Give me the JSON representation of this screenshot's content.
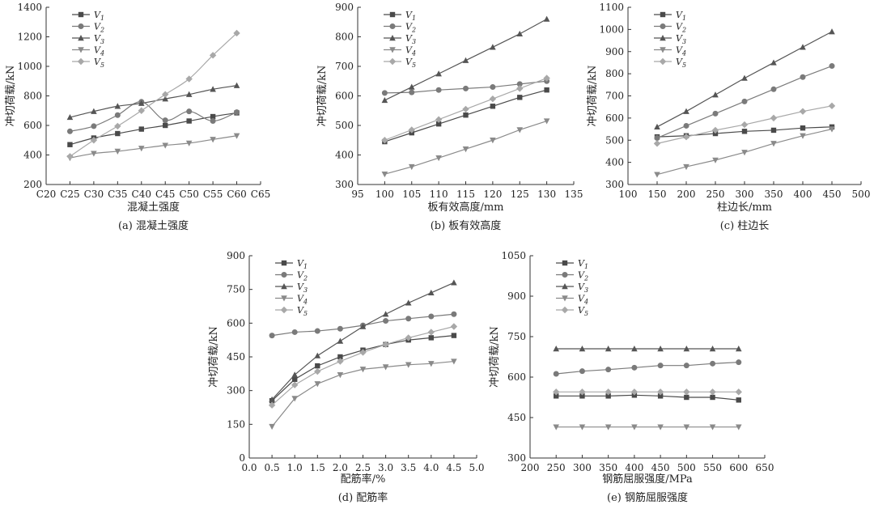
{
  "series_colors": [
    "#4a4a4a",
    "#7a7a7a",
    "#555555",
    "#8a8a8a",
    "#a8a8a8"
  ],
  "legend": [
    {
      "letter": "V",
      "sub": "1",
      "marker": "square"
    },
    {
      "letter": "V",
      "sub": "2",
      "marker": "circle"
    },
    {
      "letter": "V",
      "sub": "3",
      "marker": "triangle-up"
    },
    {
      "letter": "V",
      "sub": "4",
      "marker": "triangle-down"
    },
    {
      "letter": "V",
      "sub": "5",
      "marker": "diamond"
    }
  ],
  "chart_data": [
    {
      "id": "a",
      "type": "line",
      "title": "(a) 混凝土强度",
      "xlabel": "混凝土强度",
      "ylabel": "冲切荷载/kN",
      "x_categorical": true,
      "xticks": [
        "C20",
        "C25",
        "C30",
        "C35",
        "C40",
        "C45",
        "C50",
        "C55",
        "C60",
        "C65"
      ],
      "xlim": [
        0,
        9
      ],
      "ylim": [
        200,
        1400
      ],
      "yticks": [
        200,
        400,
        600,
        800,
        1000,
        1200,
        1400
      ],
      "smooth": true,
      "x": [
        1,
        2,
        3,
        4,
        5,
        6,
        7,
        8
      ],
      "series": [
        {
          "name": "V1",
          "values": [
            470,
            515,
            545,
            575,
            600,
            630,
            660,
            685
          ]
        },
        {
          "name": "V2",
          "values": [
            560,
            595,
            670,
            760,
            635,
            695,
            630,
            690
          ]
        },
        {
          "name": "V3",
          "values": [
            655,
            695,
            730,
            750,
            780,
            810,
            845,
            870
          ]
        },
        {
          "name": "V4",
          "values": [
            380,
            410,
            425,
            445,
            465,
            480,
            505,
            530
          ]
        },
        {
          "name": "V5",
          "values": [
            390,
            500,
            595,
            700,
            810,
            915,
            1075,
            1225
          ]
        }
      ]
    },
    {
      "id": "b",
      "type": "line",
      "title": "(b) 板有效高度",
      "xlabel": "板有效高度/mm",
      "ylabel": "冲切荷载/kN",
      "xticks": [
        95,
        100,
        105,
        110,
        115,
        120,
        125,
        130,
        135
      ],
      "xlim": [
        95,
        135
      ],
      "ylim": [
        300,
        900
      ],
      "yticks": [
        300,
        400,
        500,
        600,
        700,
        800,
        900
      ],
      "x": [
        100,
        105,
        110,
        115,
        120,
        125,
        130
      ],
      "series": [
        {
          "name": "V1",
          "values": [
            445,
            475,
            505,
            535,
            565,
            595,
            620
          ]
        },
        {
          "name": "V2",
          "values": [
            610,
            612,
            620,
            625,
            630,
            640,
            650
          ]
        },
        {
          "name": "V3",
          "values": [
            585,
            630,
            675,
            720,
            765,
            810,
            860
          ]
        },
        {
          "name": "V4",
          "values": [
            335,
            360,
            390,
            420,
            450,
            485,
            515
          ]
        },
        {
          "name": "V5",
          "values": [
            450,
            485,
            520,
            555,
            590,
            625,
            660
          ]
        }
      ]
    },
    {
      "id": "c",
      "type": "line",
      "title": "(c) 柱边长",
      "xlabel": "柱边长/mm",
      "ylabel": "冲切荷载/kN",
      "xticks": [
        100,
        150,
        200,
        250,
        300,
        350,
        400,
        450,
        500
      ],
      "xlim": [
        100,
        500
      ],
      "ylim": [
        300,
        1100
      ],
      "yticks": [
        300,
        400,
        500,
        600,
        700,
        800,
        900,
        1000,
        1100
      ],
      "x": [
        150,
        200,
        250,
        300,
        350,
        400,
        450
      ],
      "series": [
        {
          "name": "V1",
          "values": [
            515,
            520,
            530,
            540,
            545,
            555,
            560
          ]
        },
        {
          "name": "V2",
          "values": [
            510,
            565,
            620,
            675,
            730,
            785,
            835
          ]
        },
        {
          "name": "V3",
          "values": [
            560,
            630,
            705,
            780,
            850,
            920,
            990
          ]
        },
        {
          "name": "V4",
          "values": [
            345,
            380,
            410,
            445,
            485,
            520,
            550
          ]
        },
        {
          "name": "V5",
          "values": [
            485,
            515,
            545,
            570,
            600,
            630,
            655
          ]
        }
      ]
    },
    {
      "id": "d",
      "type": "line",
      "title": "(d) 配筋率",
      "xlabel": "配筋率/%",
      "ylabel": "冲切荷载/kN",
      "xticks": [
        "0.0",
        "0.5",
        "1.0",
        "1.5",
        "2.0",
        "2.5",
        "3.0",
        "3.5",
        "4.0",
        "4.5",
        "5.0"
      ],
      "xlim": [
        0,
        5
      ],
      "ylim": [
        0,
        900
      ],
      "yticks": [
        0,
        150,
        300,
        450,
        600,
        750,
        900
      ],
      "x": [
        0.5,
        1.0,
        1.5,
        2.0,
        2.5,
        3.0,
        3.5,
        4.0,
        4.5
      ],
      "series": [
        {
          "name": "V1",
          "values": [
            255,
            350,
            410,
            450,
            480,
            505,
            525,
            535,
            545
          ]
        },
        {
          "name": "V2",
          "values": [
            545,
            560,
            565,
            575,
            590,
            610,
            620,
            630,
            640
          ]
        },
        {
          "name": "V3",
          "values": [
            260,
            370,
            455,
            520,
            585,
            640,
            690,
            735,
            780
          ]
        },
        {
          "name": "V4",
          "values": [
            140,
            265,
            330,
            370,
            395,
            405,
            415,
            420,
            430
          ]
        },
        {
          "name": "V5",
          "values": [
            235,
            325,
            385,
            430,
            470,
            505,
            535,
            560,
            585
          ]
        }
      ]
    },
    {
      "id": "e",
      "type": "line",
      "title": "(e) 钢筋屈服强度",
      "xlabel": "钢筋屈服强度/MPa",
      "ylabel": "冲切荷载/kN",
      "xticks": [
        200,
        250,
        300,
        350,
        400,
        450,
        500,
        550,
        600,
        650
      ],
      "xlim": [
        200,
        650
      ],
      "ylim": [
        300,
        1050
      ],
      "yticks": [
        300,
        450,
        600,
        750,
        900,
        1050
      ],
      "x": [
        250,
        300,
        350,
        400,
        450,
        500,
        550,
        600
      ],
      "series": [
        {
          "name": "V1",
          "values": [
            530,
            530,
            530,
            533,
            530,
            525,
            525,
            515
          ]
        },
        {
          "name": "V2",
          "values": [
            612,
            622,
            628,
            635,
            643,
            643,
            650,
            655
          ]
        },
        {
          "name": "V3",
          "values": [
            705,
            705,
            705,
            705,
            705,
            705,
            705,
            705
          ]
        },
        {
          "name": "V4",
          "values": [
            415,
            415,
            415,
            415,
            415,
            415,
            415,
            415
          ]
        },
        {
          "name": "V5",
          "values": [
            545,
            545,
            545,
            545,
            545,
            545,
            545,
            545
          ]
        }
      ]
    }
  ]
}
